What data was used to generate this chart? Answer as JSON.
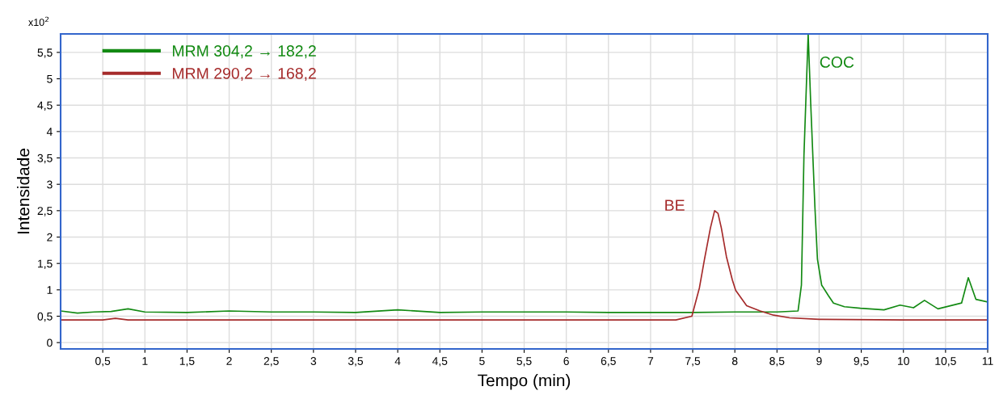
{
  "chart_data": {
    "type": "line",
    "xlabel": "Tempo (min)",
    "ylabel": "Intensidade",
    "annotations": [
      "x10$^{2}$",
      {
        "text": "BE",
        "x": 7.76,
        "y": 2.5
      },
      {
        "text": "COC",
        "x": 8.87,
        "y": 5.85
      }
    ],
    "xlim": [
      0,
      11
    ],
    "ylim": [
      -0.12,
      5.85
    ],
    "xticks": [
      {
        "value": 0.5,
        "label": "0,5"
      },
      1,
      {
        "value": 1.5,
        "label": "1,5"
      },
      2,
      {
        "value": 2.5,
        "label": "2,5"
      },
      3,
      {
        "value": 3.5,
        "label": "3,5"
      },
      4,
      {
        "value": 4.5,
        "label": "4,5"
      },
      5,
      {
        "value": 5.5,
        "label": "5,5"
      },
      6,
      {
        "value": 6.5,
        "label": "6,5"
      },
      7,
      {
        "value": 7.5,
        "label": "7,5"
      },
      8,
      {
        "value": 8.5,
        "label": "8,5"
      },
      9,
      {
        "value": 9.5,
        "label": "9,5"
      },
      10,
      {
        "value": 10.5,
        "label": "10,5"
      },
      11
    ],
    "yticks": [
      0,
      {
        "value": 0.5,
        "label": "0,5"
      },
      1,
      {
        "value": 1.5,
        "label": "1,5"
      },
      2,
      {
        "value": 2.5,
        "label": "2,5"
      },
      3,
      {
        "value": 3.5,
        "label": "3,5"
      },
      4,
      {
        "value": 4.5,
        "label": "4,5"
      },
      5,
      {
        "value": 5.5,
        "label": "5,5"
      }
    ],
    "grid": true,
    "legend": "top left",
    "marker": "none",
    "line_style": "solid",
    "series": [
      {
        "name": "MRM 304,2 → 182,2",
        "color": "#138a13",
        "x": [
          0.0,
          0.2,
          0.4,
          0.6,
          0.8,
          1.0,
          1.5,
          2.0,
          2.5,
          3.0,
          3.5,
          4.0,
          4.5,
          5.0,
          5.5,
          6.0,
          6.5,
          7.0,
          7.5,
          8.0,
          8.5,
          8.75,
          8.79,
          8.82,
          8.87,
          8.9,
          8.95,
          8.98,
          9.03,
          9.11,
          9.17,
          9.3,
          9.49,
          9.77,
          9.96,
          10.12,
          10.25,
          10.41,
          10.69,
          10.77,
          10.86,
          11.0
        ],
        "values": [
          0.6,
          0.56,
          0.58,
          0.59,
          0.64,
          0.58,
          0.57,
          0.6,
          0.58,
          0.58,
          0.57,
          0.62,
          0.57,
          0.58,
          0.58,
          0.58,
          0.57,
          0.57,
          0.57,
          0.58,
          0.58,
          0.6,
          1.09,
          3.55,
          5.85,
          4.54,
          2.57,
          1.58,
          1.09,
          0.89,
          0.75,
          0.68,
          0.65,
          0.62,
          0.71,
          0.66,
          0.8,
          0.64,
          0.75,
          1.23,
          0.82,
          0.77
        ]
      },
      {
        "name": "MRM 290,2 → 168,2",
        "color": "#a52a2a",
        "x": [
          0.0,
          0.5,
          0.65,
          0.8,
          1.5,
          2.5,
          3.5,
          4.5,
          5.5,
          6.5,
          7.3,
          7.49,
          7.58,
          7.64,
          7.71,
          7.76,
          7.8,
          7.84,
          7.9,
          7.97,
          8.01,
          8.14,
          8.3,
          8.46,
          8.65,
          9.0,
          10.0,
          11.0
        ],
        "values": [
          0.43,
          0.43,
          0.46,
          0.43,
          0.43,
          0.43,
          0.43,
          0.43,
          0.43,
          0.43,
          0.43,
          0.5,
          1.04,
          1.58,
          2.17,
          2.5,
          2.45,
          2.17,
          1.63,
          1.19,
          0.99,
          0.7,
          0.6,
          0.52,
          0.47,
          0.44,
          0.43,
          0.43
        ]
      }
    ]
  }
}
